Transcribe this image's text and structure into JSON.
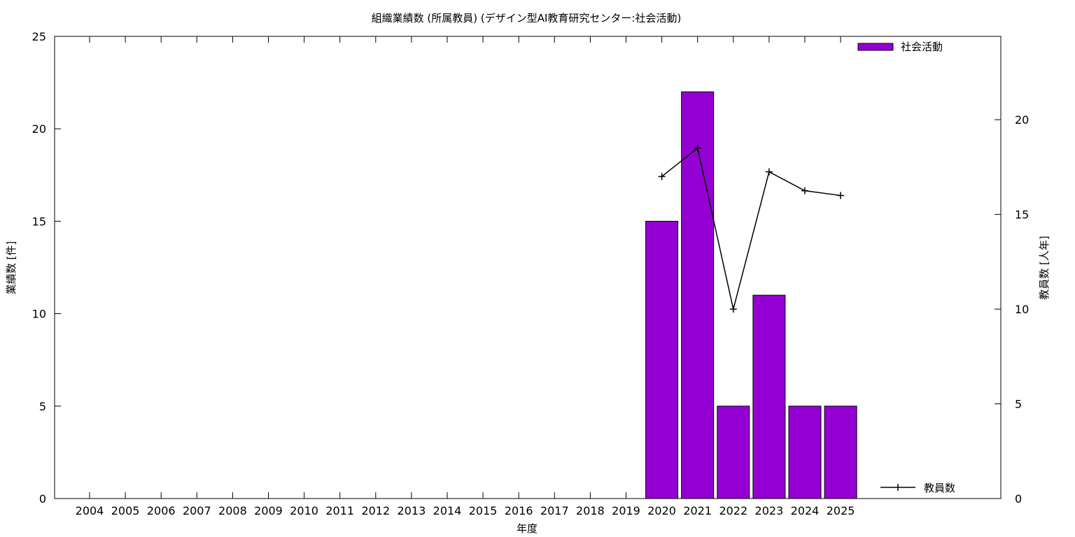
{
  "chart_data": {
    "type": "bar",
    "title": "組織業績数 (所属教員) (デザイン型AI教育研究センター:社会活動)",
    "xlabel": "年度",
    "ylabel": "業績数 [件]",
    "y2label": "教員数 [人年]",
    "categories": [
      "2004",
      "2005",
      "2006",
      "2007",
      "2008",
      "2009",
      "2010",
      "2011",
      "2012",
      "2013",
      "2014",
      "2015",
      "2016",
      "2017",
      "2018",
      "2019",
      "2020",
      "2021",
      "2022",
      "2023",
      "2024",
      "2025"
    ],
    "ylim": [
      0,
      25
    ],
    "y2lim": [
      0,
      24.4
    ],
    "yticks": [
      0,
      5,
      10,
      15,
      20,
      25
    ],
    "y2ticks": [
      0,
      5,
      10,
      15,
      20
    ],
    "grid": false,
    "series": [
      {
        "name": "社会活動",
        "kind": "bar",
        "axis": "left",
        "color": "#9400d3",
        "values": [
          null,
          null,
          null,
          null,
          null,
          null,
          null,
          null,
          null,
          null,
          null,
          null,
          null,
          null,
          null,
          null,
          15,
          22,
          5,
          11,
          5,
          5
        ]
      },
      {
        "name": "教員数",
        "kind": "line",
        "axis": "right",
        "color": "#000000",
        "values": [
          null,
          null,
          null,
          null,
          null,
          null,
          null,
          null,
          null,
          null,
          null,
          null,
          null,
          null,
          null,
          null,
          17.0,
          18.5,
          10.0,
          17.25,
          16.25,
          16.0
        ]
      }
    ],
    "legend": [
      "top-right",
      "bottom-right"
    ]
  }
}
